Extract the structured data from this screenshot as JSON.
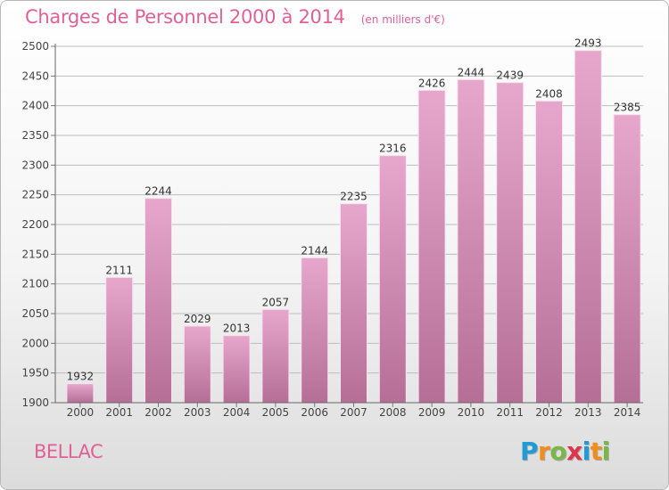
{
  "header": {
    "title": "Charges de Personnel 2000 à 2014",
    "subtitle": "(en milliers d'€)"
  },
  "footer": {
    "place": "BELLAC",
    "logo_text": "Proxiti",
    "logo_letters": [
      {
        "ch": "P",
        "color": "#1f9bd7"
      },
      {
        "ch": "r",
        "color": "#f28c1b"
      },
      {
        "ch": "o",
        "color": "#7ab648"
      },
      {
        "ch": "x",
        "color": "#e2334a"
      },
      {
        "ch": "i",
        "color": "#1f9bd7"
      },
      {
        "ch": "t",
        "color": "#f28c1b"
      },
      {
        "ch": "i",
        "color": "#7ab648"
      }
    ]
  },
  "colors": {
    "accent": "#e06098",
    "bar_top": "#e7a7cd",
    "bar_bottom": "#b56f96",
    "grid": "#bdbdbd"
  },
  "chart_data": {
    "type": "bar",
    "categories": [
      "2000",
      "2001",
      "2002",
      "2003",
      "2004",
      "2005",
      "2006",
      "2007",
      "2008",
      "2009",
      "2010",
      "2011",
      "2012",
      "2013",
      "2014"
    ],
    "values": [
      1932,
      2111,
      2244,
      2029,
      2013,
      2057,
      2144,
      2235,
      2316,
      2426,
      2444,
      2439,
      2408,
      2493,
      2385
    ],
    "ylim": [
      1900,
      2500
    ],
    "yticks": [
      1900,
      1950,
      2000,
      2050,
      2100,
      2150,
      2200,
      2250,
      2300,
      2350,
      2400,
      2450,
      2500
    ],
    "grid": true,
    "data_labels": true
  }
}
